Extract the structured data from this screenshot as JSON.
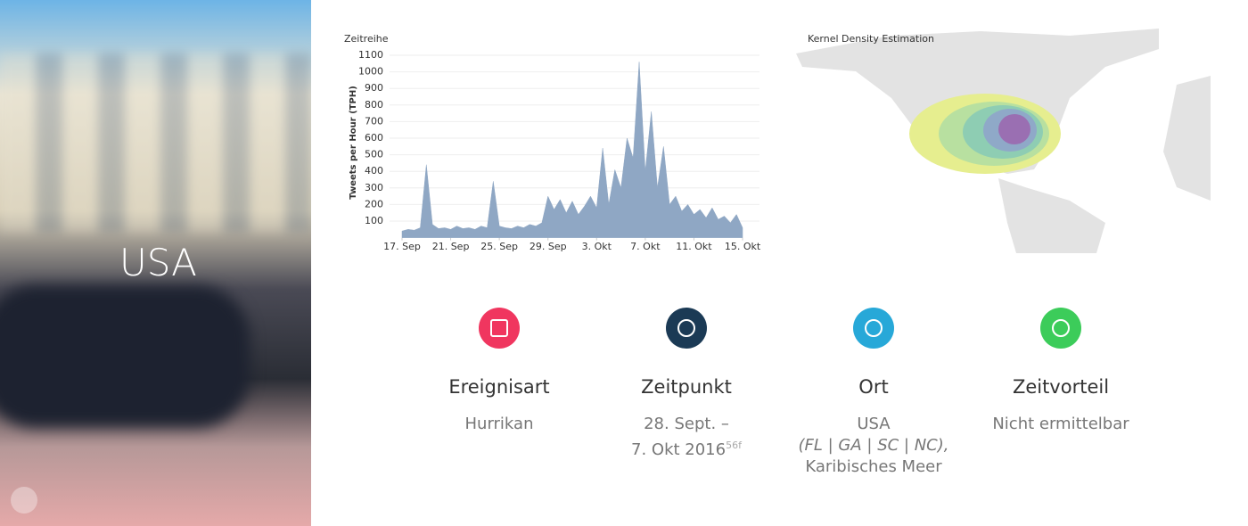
{
  "hero": {
    "label": "USA"
  },
  "chart_data": {
    "type": "area",
    "title": "Zeitreihe",
    "y_label": "Tweets per Hour (TPH)",
    "color": "#8fa7c4",
    "x": [
      0,
      0.5,
      1,
      1.5,
      2,
      2.5,
      3,
      3.5,
      4,
      4.5,
      5,
      5.5,
      6,
      6.5,
      7,
      7.5,
      8,
      8.5,
      9,
      9.5,
      10,
      10.5,
      11,
      11.5,
      12,
      12.5,
      13,
      13.5,
      14,
      14.5,
      15,
      15.5,
      16,
      16.5,
      17,
      17.5,
      18,
      18.5,
      19,
      19.5,
      20,
      20.5,
      21,
      21.5,
      22,
      22.5,
      23,
      23.5,
      24,
      24.5,
      25,
      25.5,
      26,
      26.5,
      27,
      27.5,
      28
    ],
    "values": [
      40,
      50,
      45,
      60,
      440,
      80,
      55,
      60,
      50,
      70,
      55,
      60,
      50,
      70,
      60,
      340,
      70,
      60,
      55,
      70,
      60,
      80,
      70,
      90,
      250,
      170,
      230,
      150,
      220,
      140,
      190,
      250,
      180,
      540,
      200,
      410,
      300,
      600,
      480,
      1060,
      400,
      760,
      300,
      550,
      200,
      250,
      160,
      200,
      140,
      170,
      120,
      180,
      110,
      130,
      90,
      140,
      60
    ],
    "xlim": [
      0,
      28
    ],
    "xticks": [
      {
        "value": 0,
        "label": "17. Sep"
      },
      {
        "value": 4,
        "label": "21. Sep"
      },
      {
        "value": 8,
        "label": "25. Sep"
      },
      {
        "value": 12,
        "label": "29. Sep"
      },
      {
        "value": 16,
        "label": "3. Okt"
      },
      {
        "value": 20,
        "label": "7. Okt"
      },
      {
        "value": 24,
        "label": "11. Okt"
      },
      {
        "value": 28,
        "label": "15. Okt"
      }
    ],
    "ylim": [
      0,
      1100
    ],
    "yticks": [
      100,
      200,
      300,
      400,
      500,
      600,
      700,
      800,
      900,
      1000,
      1100
    ],
    "grid": true
  },
  "map": {
    "title": "Kernel Density Estimation"
  },
  "cards": [
    {
      "title": "Ereignisart",
      "lines": [
        "Hurrikan"
      ]
    },
    {
      "title": "Zeitpunkt",
      "lines": [
        "28. Sept. –",
        "7. Okt 2016"
      ],
      "note": "56f"
    },
    {
      "title": "Ort",
      "lines": [
        "USA",
        "(FL | GA | SC | NC),",
        "Karibisches Meer"
      ]
    },
    {
      "title": "Zeitvorteil",
      "lines": [
        "Nicht ermittelbar"
      ]
    }
  ]
}
